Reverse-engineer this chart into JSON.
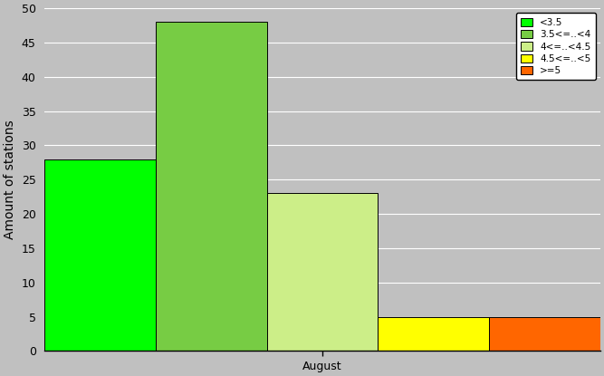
{
  "xlabel": "August",
  "ylabel": "Amount of stations",
  "ylim": [
    0,
    50
  ],
  "yticks": [
    0,
    5,
    10,
    15,
    20,
    25,
    30,
    35,
    40,
    45,
    50
  ],
  "bars": [
    {
      "label": "<3.5",
      "value": 28,
      "color": "#00FF00"
    },
    {
      "label": "3.5<=..<4",
      "value": 48,
      "color": "#77CC44"
    },
    {
      "label": "4<=..<4.5",
      "value": 23,
      "color": "#CCEE88"
    },
    {
      "label": "4.5<=..<5",
      "value": 5,
      "color": "#FFFF00"
    },
    {
      "label": ">=5",
      "value": 5,
      "color": "#FF6600"
    }
  ],
  "background_color": "#C0C0C0",
  "legend_fontsize": 7.5,
  "axis_label_fontsize": 10,
  "tick_fontsize": 9,
  "grid_color": "#AAAAAA"
}
